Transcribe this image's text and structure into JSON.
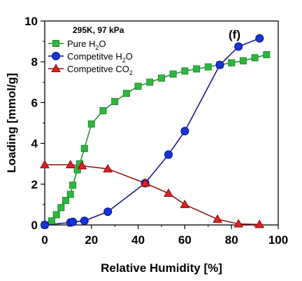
{
  "chart_data": {
    "type": "line",
    "xlabel": "Relative Humidity [%]",
    "ylabel": "Loading [mmol/g]",
    "xlim": [
      0,
      100
    ],
    "ylim": [
      0,
      10
    ],
    "xticks": [
      0,
      20,
      40,
      60,
      80,
      100
    ],
    "yticks": [
      0,
      2,
      4,
      6,
      8,
      10
    ],
    "xtick_labels": [
      "0",
      "20",
      "40",
      "60",
      "80",
      "100"
    ],
    "ytick_labels": [
      "0",
      "2",
      "4",
      "6",
      "8",
      "10"
    ],
    "grid": false,
    "legend_position": "top-left",
    "legend_title": "295K, 97 kPa",
    "panel_label": "(f)",
    "series": [
      {
        "name": "Pure H₂O",
        "name_main": "Pure H",
        "name_sub": "2",
        "name_tail": "O",
        "color": "#1f8a2b",
        "fill": "#2db83d",
        "marker": "square",
        "x": [
          0,
          3,
          5,
          7,
          9,
          11,
          12,
          14,
          15,
          17,
          20,
          25,
          30,
          35,
          40,
          45,
          50,
          55,
          60,
          65,
          70,
          75,
          80,
          85,
          90,
          95
        ],
        "y": [
          0,
          0.2,
          0.5,
          0.85,
          1.2,
          1.5,
          1.95,
          2.7,
          3.0,
          3.75,
          4.95,
          5.6,
          6.05,
          6.45,
          6.8,
          7.0,
          7.2,
          7.4,
          7.55,
          7.65,
          7.75,
          7.85,
          7.95,
          8.05,
          8.2,
          8.35
        ]
      },
      {
        "name": "Competitve H₂O",
        "name_main": "Competitve H",
        "name_sub": "2",
        "name_tail": "O",
        "color": "#0a0a8c",
        "fill": "#1536d6",
        "marker": "circle",
        "x": [
          0,
          11,
          12,
          17,
          27,
          43,
          53,
          60,
          75,
          83,
          92
        ],
        "y": [
          0,
          0.12,
          0.15,
          0.2,
          0.65,
          2.05,
          3.45,
          4.6,
          7.85,
          8.75,
          9.15
        ]
      },
      {
        "name": "Competitve CO₂",
        "name_main": "Competitve CO",
        "name_sub": "2",
        "name_tail": "",
        "color": "#8c0a0a",
        "fill": "#e02020",
        "marker": "triangle",
        "x": [
          0,
          11,
          16,
          27,
          43,
          53,
          60,
          74,
          83,
          92
        ],
        "y": [
          2.95,
          2.95,
          2.9,
          2.75,
          2.05,
          1.55,
          1.0,
          0.28,
          0.05,
          0.02
        ]
      }
    ]
  }
}
